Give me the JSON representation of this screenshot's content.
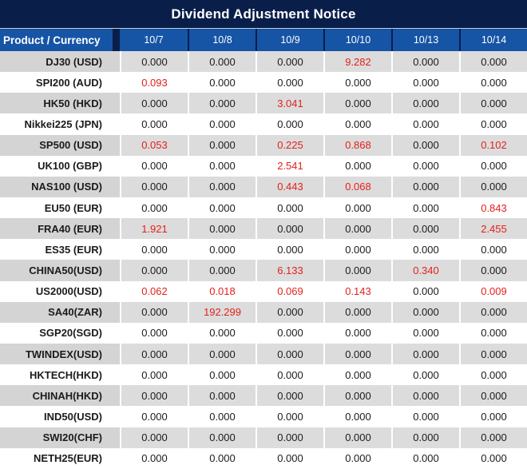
{
  "title": "Dividend Adjustment Notice",
  "colors": {
    "title_bar_bg": "#0a1e4a",
    "header_cell_bg": "#1654a5",
    "header_text": "#ffffff",
    "row_stripe_label": "#d4d4d4",
    "row_stripe_value": "#dcdcdc",
    "row_white": "#ffffff",
    "value_text": "#1b1b1b",
    "highlight_red": "#e3211c"
  },
  "table": {
    "corner_header": "Product / Currency",
    "columns": [
      "10/7",
      "10/8",
      "10/9",
      "10/10",
      "10/13",
      "10/14"
    ],
    "rows": [
      {
        "label": "DJ30 (USD)",
        "values": [
          "0.000",
          "0.000",
          "0.000",
          "9.282",
          "0.000",
          "0.000"
        ],
        "red": [
          3
        ]
      },
      {
        "label": "SPI200 (AUD)",
        "values": [
          "0.093",
          "0.000",
          "0.000",
          "0.000",
          "0.000",
          "0.000"
        ],
        "red": [
          0
        ]
      },
      {
        "label": "HK50 (HKD)",
        "values": [
          "0.000",
          "0.000",
          "3.041",
          "0.000",
          "0.000",
          "0.000"
        ],
        "red": [
          2
        ]
      },
      {
        "label": "Nikkei225 (JPN)",
        "values": [
          "0.000",
          "0.000",
          "0.000",
          "0.000",
          "0.000",
          "0.000"
        ],
        "red": []
      },
      {
        "label": "SP500 (USD)",
        "values": [
          "0.053",
          "0.000",
          "0.225",
          "0.868",
          "0.000",
          "0.102"
        ],
        "red": [
          0,
          2,
          3,
          5
        ]
      },
      {
        "label": "UK100 (GBP)",
        "values": [
          "0.000",
          "0.000",
          "2.541",
          "0.000",
          "0.000",
          "0.000"
        ],
        "red": [
          2
        ]
      },
      {
        "label": "NAS100 (USD)",
        "values": [
          "0.000",
          "0.000",
          "0.443",
          "0.068",
          "0.000",
          "0.000"
        ],
        "red": [
          2,
          3
        ]
      },
      {
        "label": "EU50 (EUR)",
        "values": [
          "0.000",
          "0.000",
          "0.000",
          "0.000",
          "0.000",
          "0.843"
        ],
        "red": [
          5
        ]
      },
      {
        "label": "FRA40 (EUR)",
        "values": [
          "1.921",
          "0.000",
          "0.000",
          "0.000",
          "0.000",
          "2.455"
        ],
        "red": [
          0,
          5
        ]
      },
      {
        "label": "ES35 (EUR)",
        "values": [
          "0.000",
          "0.000",
          "0.000",
          "0.000",
          "0.000",
          "0.000"
        ],
        "red": []
      },
      {
        "label": "CHINA50(USD)",
        "values": [
          "0.000",
          "0.000",
          "6.133",
          "0.000",
          "0.340",
          "0.000"
        ],
        "red": [
          2,
          4
        ]
      },
      {
        "label": "US2000(USD)",
        "values": [
          "0.062",
          "0.018",
          "0.069",
          "0.143",
          "0.000",
          "0.009"
        ],
        "red": [
          0,
          1,
          2,
          3,
          5
        ]
      },
      {
        "label": "SA40(ZAR)",
        "values": [
          "0.000",
          "192.299",
          "0.000",
          "0.000",
          "0.000",
          "0.000"
        ],
        "red": [
          1
        ]
      },
      {
        "label": "SGP20(SGD)",
        "values": [
          "0.000",
          "0.000",
          "0.000",
          "0.000",
          "0.000",
          "0.000"
        ],
        "red": []
      },
      {
        "label": "TWINDEX(USD)",
        "values": [
          "0.000",
          "0.000",
          "0.000",
          "0.000",
          "0.000",
          "0.000"
        ],
        "red": []
      },
      {
        "label": "HKTECH(HKD)",
        "values": [
          "0.000",
          "0.000",
          "0.000",
          "0.000",
          "0.000",
          "0.000"
        ],
        "red": []
      },
      {
        "label": "CHINAH(HKD)",
        "values": [
          "0.000",
          "0.000",
          "0.000",
          "0.000",
          "0.000",
          "0.000"
        ],
        "red": []
      },
      {
        "label": "IND50(USD)",
        "values": [
          "0.000",
          "0.000",
          "0.000",
          "0.000",
          "0.000",
          "0.000"
        ],
        "red": []
      },
      {
        "label": "SWI20(CHF)",
        "values": [
          "0.000",
          "0.000",
          "0.000",
          "0.000",
          "0.000",
          "0.000"
        ],
        "red": []
      },
      {
        "label": "NETH25(EUR)",
        "values": [
          "0.000",
          "0.000",
          "0.000",
          "0.000",
          "0.000",
          "0.000"
        ],
        "red": []
      }
    ]
  }
}
